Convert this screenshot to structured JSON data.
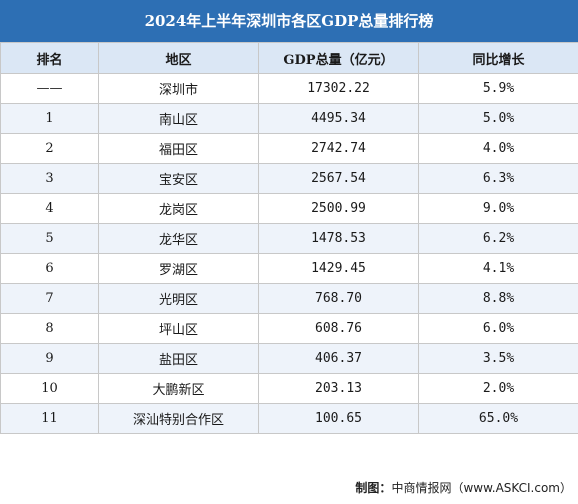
{
  "title": "2024年上半年深圳市各区GDP总量排行榜",
  "headers": [
    "排名",
    "地区",
    "GDP总量（亿元）",
    "同比增长"
  ],
  "rows": [
    [
      "——",
      "深圳市",
      "17302.22",
      "5.9%"
    ],
    [
      "1",
      "南山区",
      "4495.34",
      "5.0%"
    ],
    [
      "2",
      "福田区",
      "2742.74",
      "4.0%"
    ],
    [
      "3",
      "宝安区",
      "2567.54",
      "6.3%"
    ],
    [
      "4",
      "龙岗区",
      "2500.99",
      "9.0%"
    ],
    [
      "5",
      "龙华区",
      "1478.53",
      "6.2%"
    ],
    [
      "6",
      "罗湖区",
      "1429.45",
      "4.1%"
    ],
    [
      "7",
      "光明区",
      "768.70",
      "8.8%"
    ],
    [
      "8",
      "坪山区",
      "608.76",
      "6.0%"
    ],
    [
      "9",
      "盐田区",
      "406.37",
      "3.5%"
    ],
    [
      "10",
      "大鹏新区",
      "203.13",
      "2.0%"
    ],
    [
      "11",
      "深汕特别合作区",
      "100.65",
      "65.0%"
    ]
  ],
  "footer": {
    "label": "制图：",
    "source": "中商情报网（www.ASKCI.com）"
  },
  "colors": {
    "title_bg": "#2d6fb4",
    "header_bg": "#dbe7f5",
    "stripe": "#eef3fa"
  }
}
